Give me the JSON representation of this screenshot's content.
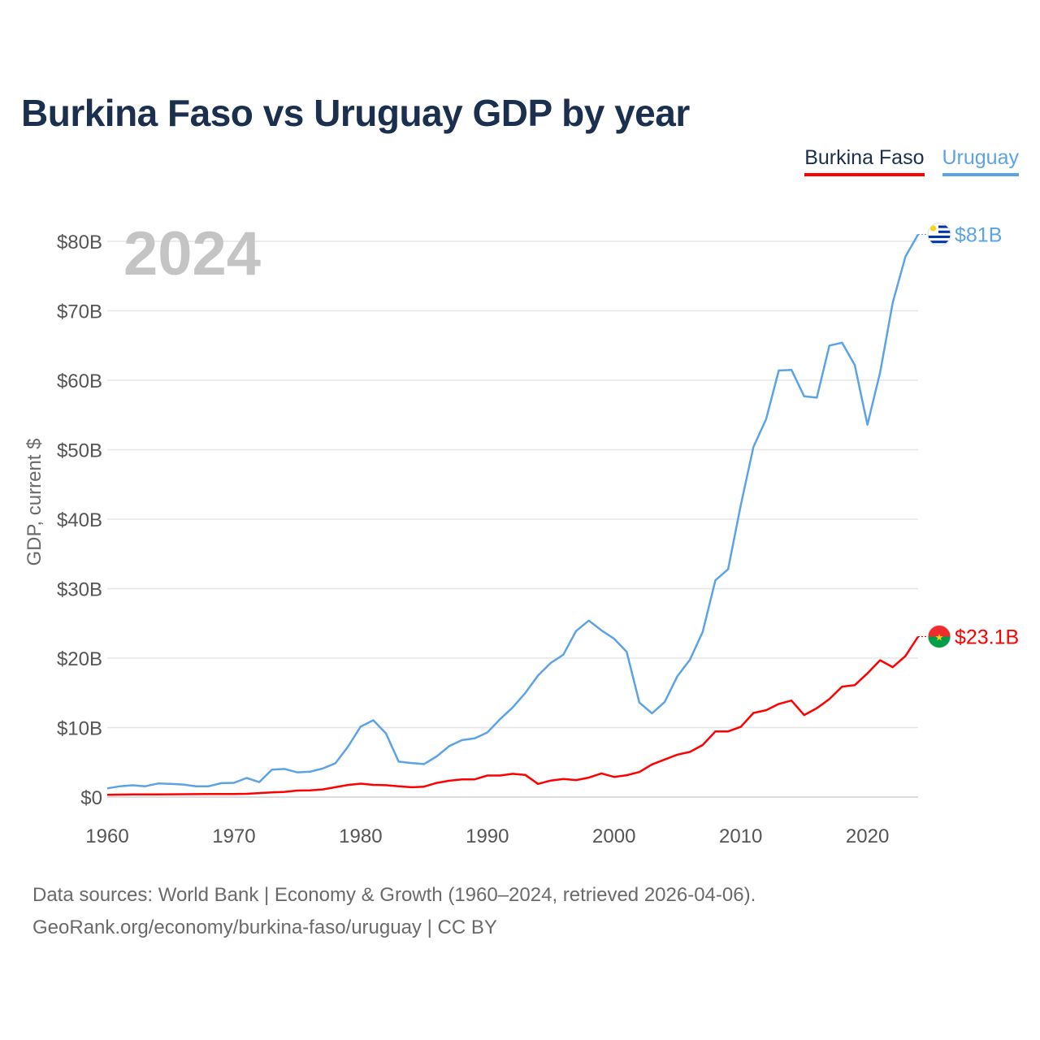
{
  "chart_data": {
    "type": "line",
    "title": "Burkina Faso vs Uruguay GDP by year",
    "ylabel": "GDP, current $",
    "xlabel": "",
    "year_label": "2024",
    "xlim": [
      1960,
      2024
    ],
    "ylim": [
      0,
      80
    ],
    "x_ticks": [
      1960,
      1970,
      1980,
      1990,
      2000,
      2010,
      2020
    ],
    "y_ticks": [
      {
        "value": 0,
        "label": "$0"
      },
      {
        "value": 10,
        "label": "$10B"
      },
      {
        "value": 20,
        "label": "$20B"
      },
      {
        "value": 30,
        "label": "$30B"
      },
      {
        "value": 40,
        "label": "$40B"
      },
      {
        "value": 50,
        "label": "$50B"
      },
      {
        "value": 60,
        "label": "$60B"
      },
      {
        "value": 70,
        "label": "$70B"
      },
      {
        "value": 80,
        "label": "$80B"
      }
    ],
    "x": [
      1960,
      1961,
      1962,
      1963,
      1964,
      1965,
      1966,
      1967,
      1968,
      1969,
      1970,
      1971,
      1972,
      1973,
      1974,
      1975,
      1976,
      1977,
      1978,
      1979,
      1980,
      1981,
      1982,
      1983,
      1984,
      1985,
      1986,
      1987,
      1988,
      1989,
      1990,
      1991,
      1992,
      1993,
      1994,
      1995,
      1996,
      1997,
      1998,
      1999,
      2000,
      2001,
      2002,
      2003,
      2004,
      2005,
      2006,
      2007,
      2008,
      2009,
      2010,
      2011,
      2012,
      2013,
      2014,
      2015,
      2016,
      2017,
      2018,
      2019,
      2020,
      2021,
      2022,
      2023,
      2024
    ],
    "series": [
      {
        "name": "Burkina Faso",
        "color": "#ff0000",
        "end_label": "$23.1B",
        "flag": "burkina-faso-flag",
        "values": [
          0.33,
          0.35,
          0.37,
          0.38,
          0.39,
          0.4,
          0.41,
          0.42,
          0.43,
          0.45,
          0.45,
          0.47,
          0.57,
          0.67,
          0.75,
          0.93,
          0.96,
          1.1,
          1.42,
          1.74,
          1.93,
          1.76,
          1.71,
          1.55,
          1.42,
          1.5,
          2.03,
          2.35,
          2.55,
          2.55,
          3.1,
          3.1,
          3.35,
          3.18,
          1.9,
          2.38,
          2.6,
          2.45,
          2.8,
          3.4,
          2.9,
          3.15,
          3.6,
          4.7,
          5.4,
          6.1,
          6.5,
          7.5,
          9.45,
          9.45,
          10.1,
          12.1,
          12.5,
          13.4,
          13.9,
          11.8,
          12.8,
          14.1,
          15.9,
          16.1,
          17.8,
          19.7,
          18.7,
          20.3,
          23.1
        ]
      },
      {
        "name": "Uruguay",
        "color": "#5ba3e6",
        "end_label": "$81B",
        "flag": "uruguay-flag",
        "values": [
          1.25,
          1.55,
          1.7,
          1.55,
          1.95,
          1.9,
          1.8,
          1.55,
          1.55,
          2.0,
          2.05,
          2.75,
          2.15,
          3.95,
          4.05,
          3.55,
          3.65,
          4.1,
          4.85,
          7.25,
          10.15,
          11.05,
          9.15,
          5.1,
          4.9,
          4.75,
          5.85,
          7.35,
          8.2,
          8.45,
          9.3,
          11.2,
          12.9,
          15.0,
          17.5,
          19.3,
          20.5,
          23.9,
          25.4,
          24.0,
          22.8,
          20.9,
          13.6,
          12.05,
          13.7,
          17.4,
          19.8,
          23.8,
          31.2,
          32.8,
          42.0,
          50.4,
          54.4,
          61.4,
          61.5,
          57.7,
          57.5,
          65.0,
          65.4,
          62.2,
          53.6,
          61.1,
          71.2,
          77.8,
          81.0
        ]
      }
    ],
    "legend": [
      "Burkina Faso",
      "Uruguay"
    ],
    "legend_position": "top-right",
    "grid": true
  },
  "footer": {
    "line1": "Data sources: World Bank | Economy & Growth (1960–2024, retrieved 2026-04-06).",
    "line2": "GeoRank.org/economy/burkina-faso/uruguay | CC BY"
  }
}
